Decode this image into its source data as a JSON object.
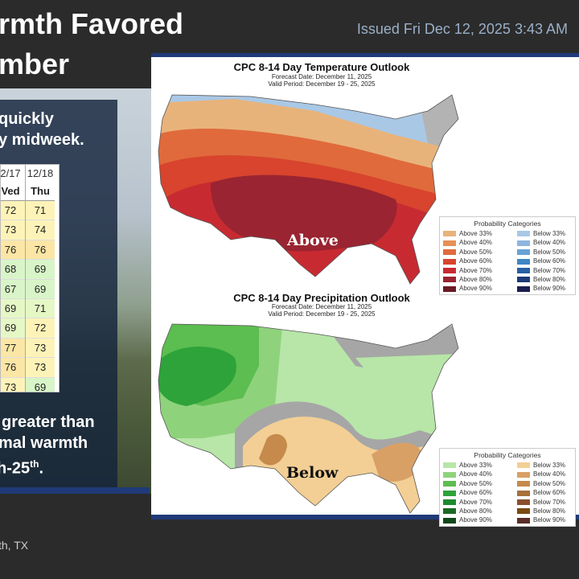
{
  "header": {
    "title_line1": "rmth Favored",
    "title_line2": "mber",
    "issued": "Issued Fri Dec 12, 2025 3:43 AM"
  },
  "panel": {
    "text_line1": "quickly",
    "text_line2": "y midweek.",
    "bottom_line1": "greater than",
    "bottom_line2": "mal warmth",
    "bottom_line3_main": "h-25",
    "bottom_line3_sup": "th",
    "bottom_line3_end": "."
  },
  "table": {
    "columns": [
      {
        "date": "2/17",
        "day": "Ved",
        "values": [
          "72",
          "73",
          "76",
          "68",
          "67",
          "69",
          "69",
          "77",
          "76",
          "73"
        ]
      },
      {
        "date": "12/18",
        "day": "Thu",
        "values": [
          "71",
          "74",
          "76",
          "69",
          "69",
          "71",
          "72",
          "73",
          "73",
          "69"
        ]
      }
    ]
  },
  "footer": {
    "location": "th, TX"
  },
  "temp_map": {
    "title": "CPC 8-14 Day Temperature Outlook",
    "forecast_date": "Forecast Date: December 11, 2025",
    "valid_period": "Valid Period: December 19 - 25, 2025",
    "big_label": "Above",
    "legend_title": "Probability Categories",
    "legend_left": [
      {
        "label": "Above 33%",
        "color": "#e8b37a"
      },
      {
        "label": "Above 40%",
        "color": "#e59055"
      },
      {
        "label": "Above 50%",
        "color": "#e06a3c"
      },
      {
        "label": "Above 60%",
        "color": "#d8442d"
      },
      {
        "label": "Above 70%",
        "color": "#c82a32"
      },
      {
        "label": "Above 80%",
        "color": "#9a2431"
      },
      {
        "label": "Above 90%",
        "color": "#6b1a22"
      }
    ],
    "legend_right": [
      {
        "label": "Below 33%",
        "color": "#a9c8e6"
      },
      {
        "label": "Below 40%",
        "color": "#8db6de"
      },
      {
        "label": "Below 50%",
        "color": "#6aa2d4"
      },
      {
        "label": "Below 60%",
        "color": "#3f86c4"
      },
      {
        "label": "Below 70%",
        "color": "#2860a4"
      },
      {
        "label": "Below 80%",
        "color": "#1f3a78"
      },
      {
        "label": "Below 90%",
        "color": "#1b1f4e"
      }
    ]
  },
  "precip_map": {
    "title": "CPC 8-14 Day Precipitation Outlook",
    "forecast_date": "Forecast Date: December 11, 2025",
    "valid_period": "Valid Period: December 19 - 25, 2025",
    "big_label": "Below",
    "legend_title": "Probability Categories",
    "legend_left": [
      {
        "label": "Above 33%",
        "color": "#b7e6a8"
      },
      {
        "label": "Above 40%",
        "color": "#8fd27c"
      },
      {
        "label": "Above 50%",
        "color": "#5cbd50"
      },
      {
        "label": "Above 60%",
        "color": "#2ea33a"
      },
      {
        "label": "Above 70%",
        "color": "#1d8a2e"
      },
      {
        "label": "Above 80%",
        "color": "#1a6a25"
      },
      {
        "label": "Above 90%",
        "color": "#11481a"
      }
    ],
    "legend_right": [
      {
        "label": "Below 33%",
        "color": "#f3cf95"
      },
      {
        "label": "Below 40%",
        "color": "#d9a066"
      },
      {
        "label": "Below 50%",
        "color": "#c58a4c"
      },
      {
        "label": "Below 60%",
        "color": "#a8703a"
      },
      {
        "label": "Below 70%",
        "color": "#8a4e2a"
      },
      {
        "label": "Below 80%",
        "color": "#7a4a12"
      },
      {
        "label": "Below 90%",
        "color": "#5a2f2a"
      }
    ]
  }
}
